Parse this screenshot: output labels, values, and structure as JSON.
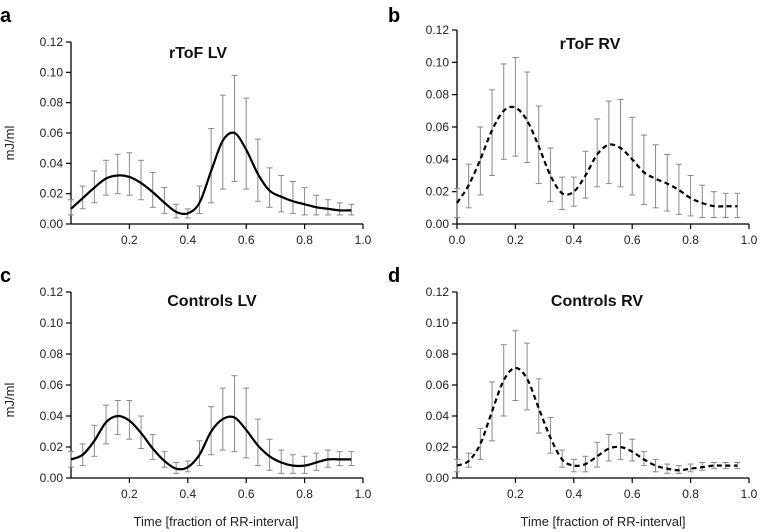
{
  "chart_data": [
    {
      "type": "line",
      "panel_letter": "a",
      "title": "rToF LV",
      "ylabel": "mJ/ml",
      "xlabel": "",
      "line_style": "solid",
      "xlim": [
        0,
        1.0
      ],
      "ylim": [
        0,
        0.12
      ],
      "xticks": [
        "0.2",
        "0.4",
        "0.6",
        "0.8",
        "1.0"
      ],
      "yticks": [
        "0.00",
        "0.02",
        "0.04",
        "0.06",
        "0.08",
        "0.10",
        "0.12"
      ],
      "series": [
        {
          "name": "rToF LV",
          "x": [
            0.0,
            0.04,
            0.08,
            0.12,
            0.16,
            0.2,
            0.24,
            0.28,
            0.32,
            0.36,
            0.4,
            0.44,
            0.48,
            0.52,
            0.56,
            0.6,
            0.64,
            0.68,
            0.72,
            0.76,
            0.8,
            0.84,
            0.88,
            0.92,
            0.96
          ],
          "y": [
            0.01,
            0.017,
            0.024,
            0.03,
            0.032,
            0.031,
            0.027,
            0.021,
            0.014,
            0.008,
            0.007,
            0.014,
            0.035,
            0.055,
            0.06,
            0.049,
            0.033,
            0.022,
            0.018,
            0.015,
            0.013,
            0.011,
            0.01,
            0.009,
            0.009
          ],
          "lower": [
            0.006,
            0.01,
            0.014,
            0.019,
            0.02,
            0.019,
            0.016,
            0.011,
            0.007,
            0.004,
            0.004,
            0.007,
            0.014,
            0.023,
            0.028,
            0.023,
            0.015,
            0.011,
            0.008,
            0.007,
            0.006,
            0.006,
            0.006,
            0.006,
            0.006
          ],
          "upper": [
            0.016,
            0.025,
            0.035,
            0.042,
            0.046,
            0.047,
            0.042,
            0.034,
            0.024,
            0.013,
            0.01,
            0.025,
            0.063,
            0.085,
            0.098,
            0.083,
            0.056,
            0.037,
            0.032,
            0.028,
            0.024,
            0.019,
            0.016,
            0.014,
            0.013
          ]
        }
      ]
    },
    {
      "type": "line",
      "panel_letter": "b",
      "title": "rToF RV",
      "ylabel": "",
      "xlabel": "",
      "line_style": "dashed",
      "xlim": [
        0,
        1.0
      ],
      "ylim": [
        0,
        0.12
      ],
      "xticks": [
        "0.0",
        "0.2",
        "0.4",
        "0.6",
        "0.8",
        "1.0"
      ],
      "yticks": [
        "0.00",
        "0.02",
        "0.04",
        "0.06",
        "0.08",
        "0.10",
        "0.12"
      ],
      "series": [
        {
          "name": "rToF RV",
          "x": [
            0.0,
            0.04,
            0.08,
            0.12,
            0.16,
            0.2,
            0.24,
            0.28,
            0.32,
            0.36,
            0.4,
            0.44,
            0.48,
            0.52,
            0.56,
            0.6,
            0.64,
            0.68,
            0.72,
            0.76,
            0.8,
            0.84,
            0.88,
            0.92,
            0.96
          ],
          "y": [
            0.013,
            0.024,
            0.04,
            0.058,
            0.07,
            0.072,
            0.064,
            0.048,
            0.03,
            0.019,
            0.02,
            0.03,
            0.043,
            0.049,
            0.047,
            0.04,
            0.032,
            0.028,
            0.025,
            0.021,
            0.016,
            0.013,
            0.011,
            0.011,
            0.011
          ],
          "lower": [
            0.004,
            0.01,
            0.018,
            0.03,
            0.04,
            0.042,
            0.038,
            0.025,
            0.014,
            0.009,
            0.011,
            0.016,
            0.023,
            0.025,
            0.023,
            0.018,
            0.012,
            0.01,
            0.008,
            0.006,
            0.005,
            0.004,
            0.004,
            0.004,
            0.004
          ],
          "upper": [
            0.022,
            0.037,
            0.06,
            0.083,
            0.099,
            0.103,
            0.094,
            0.073,
            0.047,
            0.029,
            0.029,
            0.045,
            0.065,
            0.076,
            0.077,
            0.066,
            0.055,
            0.049,
            0.043,
            0.037,
            0.03,
            0.024,
            0.02,
            0.019,
            0.019
          ]
        }
      ]
    },
    {
      "type": "line",
      "panel_letter": "c",
      "title": "Controls LV",
      "ylabel": "mJ/ml",
      "xlabel": "Time [fraction of RR-interval]",
      "line_style": "solid",
      "xlim": [
        0,
        1.0
      ],
      "ylim": [
        0,
        0.12
      ],
      "xticks": [
        "0.2",
        "0.4",
        "0.6",
        "0.8",
        "1.0"
      ],
      "yticks": [
        "0.00",
        "0.02",
        "0.04",
        "0.06",
        "0.08",
        "0.10",
        "0.12"
      ],
      "series": [
        {
          "name": "Controls LV",
          "x": [
            0.0,
            0.04,
            0.08,
            0.12,
            0.16,
            0.2,
            0.24,
            0.28,
            0.32,
            0.36,
            0.4,
            0.44,
            0.48,
            0.52,
            0.56,
            0.6,
            0.64,
            0.68,
            0.72,
            0.76,
            0.8,
            0.84,
            0.88,
            0.92,
            0.96
          ],
          "y": [
            0.012,
            0.015,
            0.024,
            0.036,
            0.04,
            0.037,
            0.029,
            0.019,
            0.011,
            0.006,
            0.007,
            0.015,
            0.03,
            0.038,
            0.039,
            0.031,
            0.021,
            0.014,
            0.01,
            0.008,
            0.008,
            0.01,
            0.012,
            0.012,
            0.012
          ],
          "lower": [
            0.007,
            0.008,
            0.014,
            0.022,
            0.028,
            0.025,
            0.019,
            0.012,
            0.007,
            0.003,
            0.004,
            0.008,
            0.015,
            0.018,
            0.017,
            0.013,
            0.008,
            0.005,
            0.003,
            0.003,
            0.003,
            0.005,
            0.007,
            0.008,
            0.008
          ],
          "upper": [
            0.017,
            0.022,
            0.034,
            0.047,
            0.05,
            0.05,
            0.04,
            0.028,
            0.017,
            0.01,
            0.011,
            0.024,
            0.046,
            0.058,
            0.066,
            0.058,
            0.038,
            0.025,
            0.018,
            0.015,
            0.014,
            0.016,
            0.018,
            0.017,
            0.017
          ]
        }
      ]
    },
    {
      "type": "line",
      "panel_letter": "d",
      "title": "Controls RV",
      "ylabel": "",
      "xlabel": "Time [fraction of RR-interval]",
      "line_style": "dashed",
      "xlim": [
        0,
        1.0
      ],
      "ylim": [
        0,
        0.12
      ],
      "xticks": [
        "0.2",
        "0.4",
        "0.6",
        "0.8",
        "1.0"
      ],
      "yticks": [
        "0.00",
        "0.02",
        "0.04",
        "0.06",
        "0.08",
        "0.10",
        "0.12"
      ],
      "series": [
        {
          "name": "Controls RV",
          "x": [
            0.0,
            0.04,
            0.08,
            0.12,
            0.16,
            0.2,
            0.24,
            0.28,
            0.32,
            0.36,
            0.4,
            0.44,
            0.48,
            0.52,
            0.56,
            0.6,
            0.64,
            0.68,
            0.72,
            0.76,
            0.8,
            0.84,
            0.88,
            0.92,
            0.96
          ],
          "y": [
            0.008,
            0.011,
            0.022,
            0.043,
            0.063,
            0.071,
            0.064,
            0.045,
            0.026,
            0.012,
            0.008,
            0.009,
            0.014,
            0.019,
            0.02,
            0.017,
            0.012,
            0.008,
            0.006,
            0.005,
            0.006,
            0.007,
            0.008,
            0.008,
            0.008
          ],
          "lower": [
            0.004,
            0.007,
            0.012,
            0.024,
            0.04,
            0.05,
            0.044,
            0.029,
            0.016,
            0.007,
            0.004,
            0.004,
            0.007,
            0.011,
            0.012,
            0.011,
            0.008,
            0.004,
            0.003,
            0.003,
            0.004,
            0.005,
            0.006,
            0.006,
            0.006
          ],
          "upper": [
            0.012,
            0.016,
            0.032,
            0.062,
            0.086,
            0.095,
            0.087,
            0.064,
            0.039,
            0.018,
            0.012,
            0.014,
            0.023,
            0.028,
            0.029,
            0.025,
            0.017,
            0.012,
            0.009,
            0.008,
            0.009,
            0.01,
            0.01,
            0.01,
            0.01
          ]
        }
      ]
    }
  ]
}
